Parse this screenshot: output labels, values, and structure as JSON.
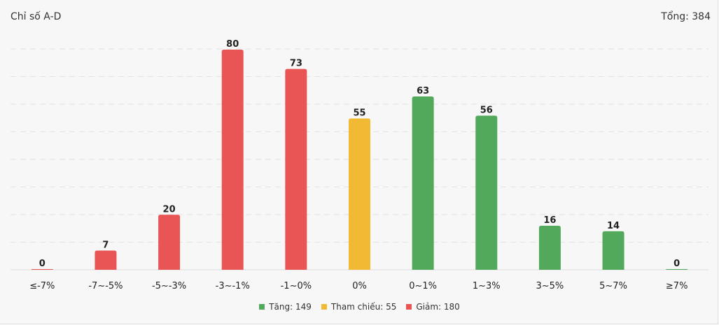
{
  "header": {
    "title": "Chỉ số A-D",
    "total": "Tổng: 384"
  },
  "colors": {
    "up": "#52a95b",
    "ref": "#f2b935",
    "down": "#e95555"
  },
  "legend": [
    {
      "label": "Tăng: 149",
      "color": "#52a95b"
    },
    {
      "label": "Tham chiếu: 55",
      "color": "#f2b935"
    },
    {
      "label": "Giảm: 180",
      "color": "#e95555"
    }
  ],
  "chart_data": {
    "type": "bar",
    "title": "Chỉ số A-D",
    "categories": [
      "≤-7%",
      "-7~-5%",
      "-5~-3%",
      "-3~-1%",
      "-1~0%",
      "0%",
      "0~1%",
      "1~3%",
      "3~5%",
      "5~7%",
      "≥7%"
    ],
    "values": [
      0,
      7,
      20,
      80,
      73,
      55,
      63,
      56,
      16,
      14,
      0
    ],
    "bar_colors": [
      "#e95555",
      "#e95555",
      "#e95555",
      "#e95555",
      "#e95555",
      "#f2b935",
      "#52a95b",
      "#52a95b",
      "#52a95b",
      "#52a95b",
      "#52a95b"
    ],
    "ylim": [
      0,
      80
    ],
    "grid": true,
    "xlabel": "",
    "ylabel": ""
  }
}
